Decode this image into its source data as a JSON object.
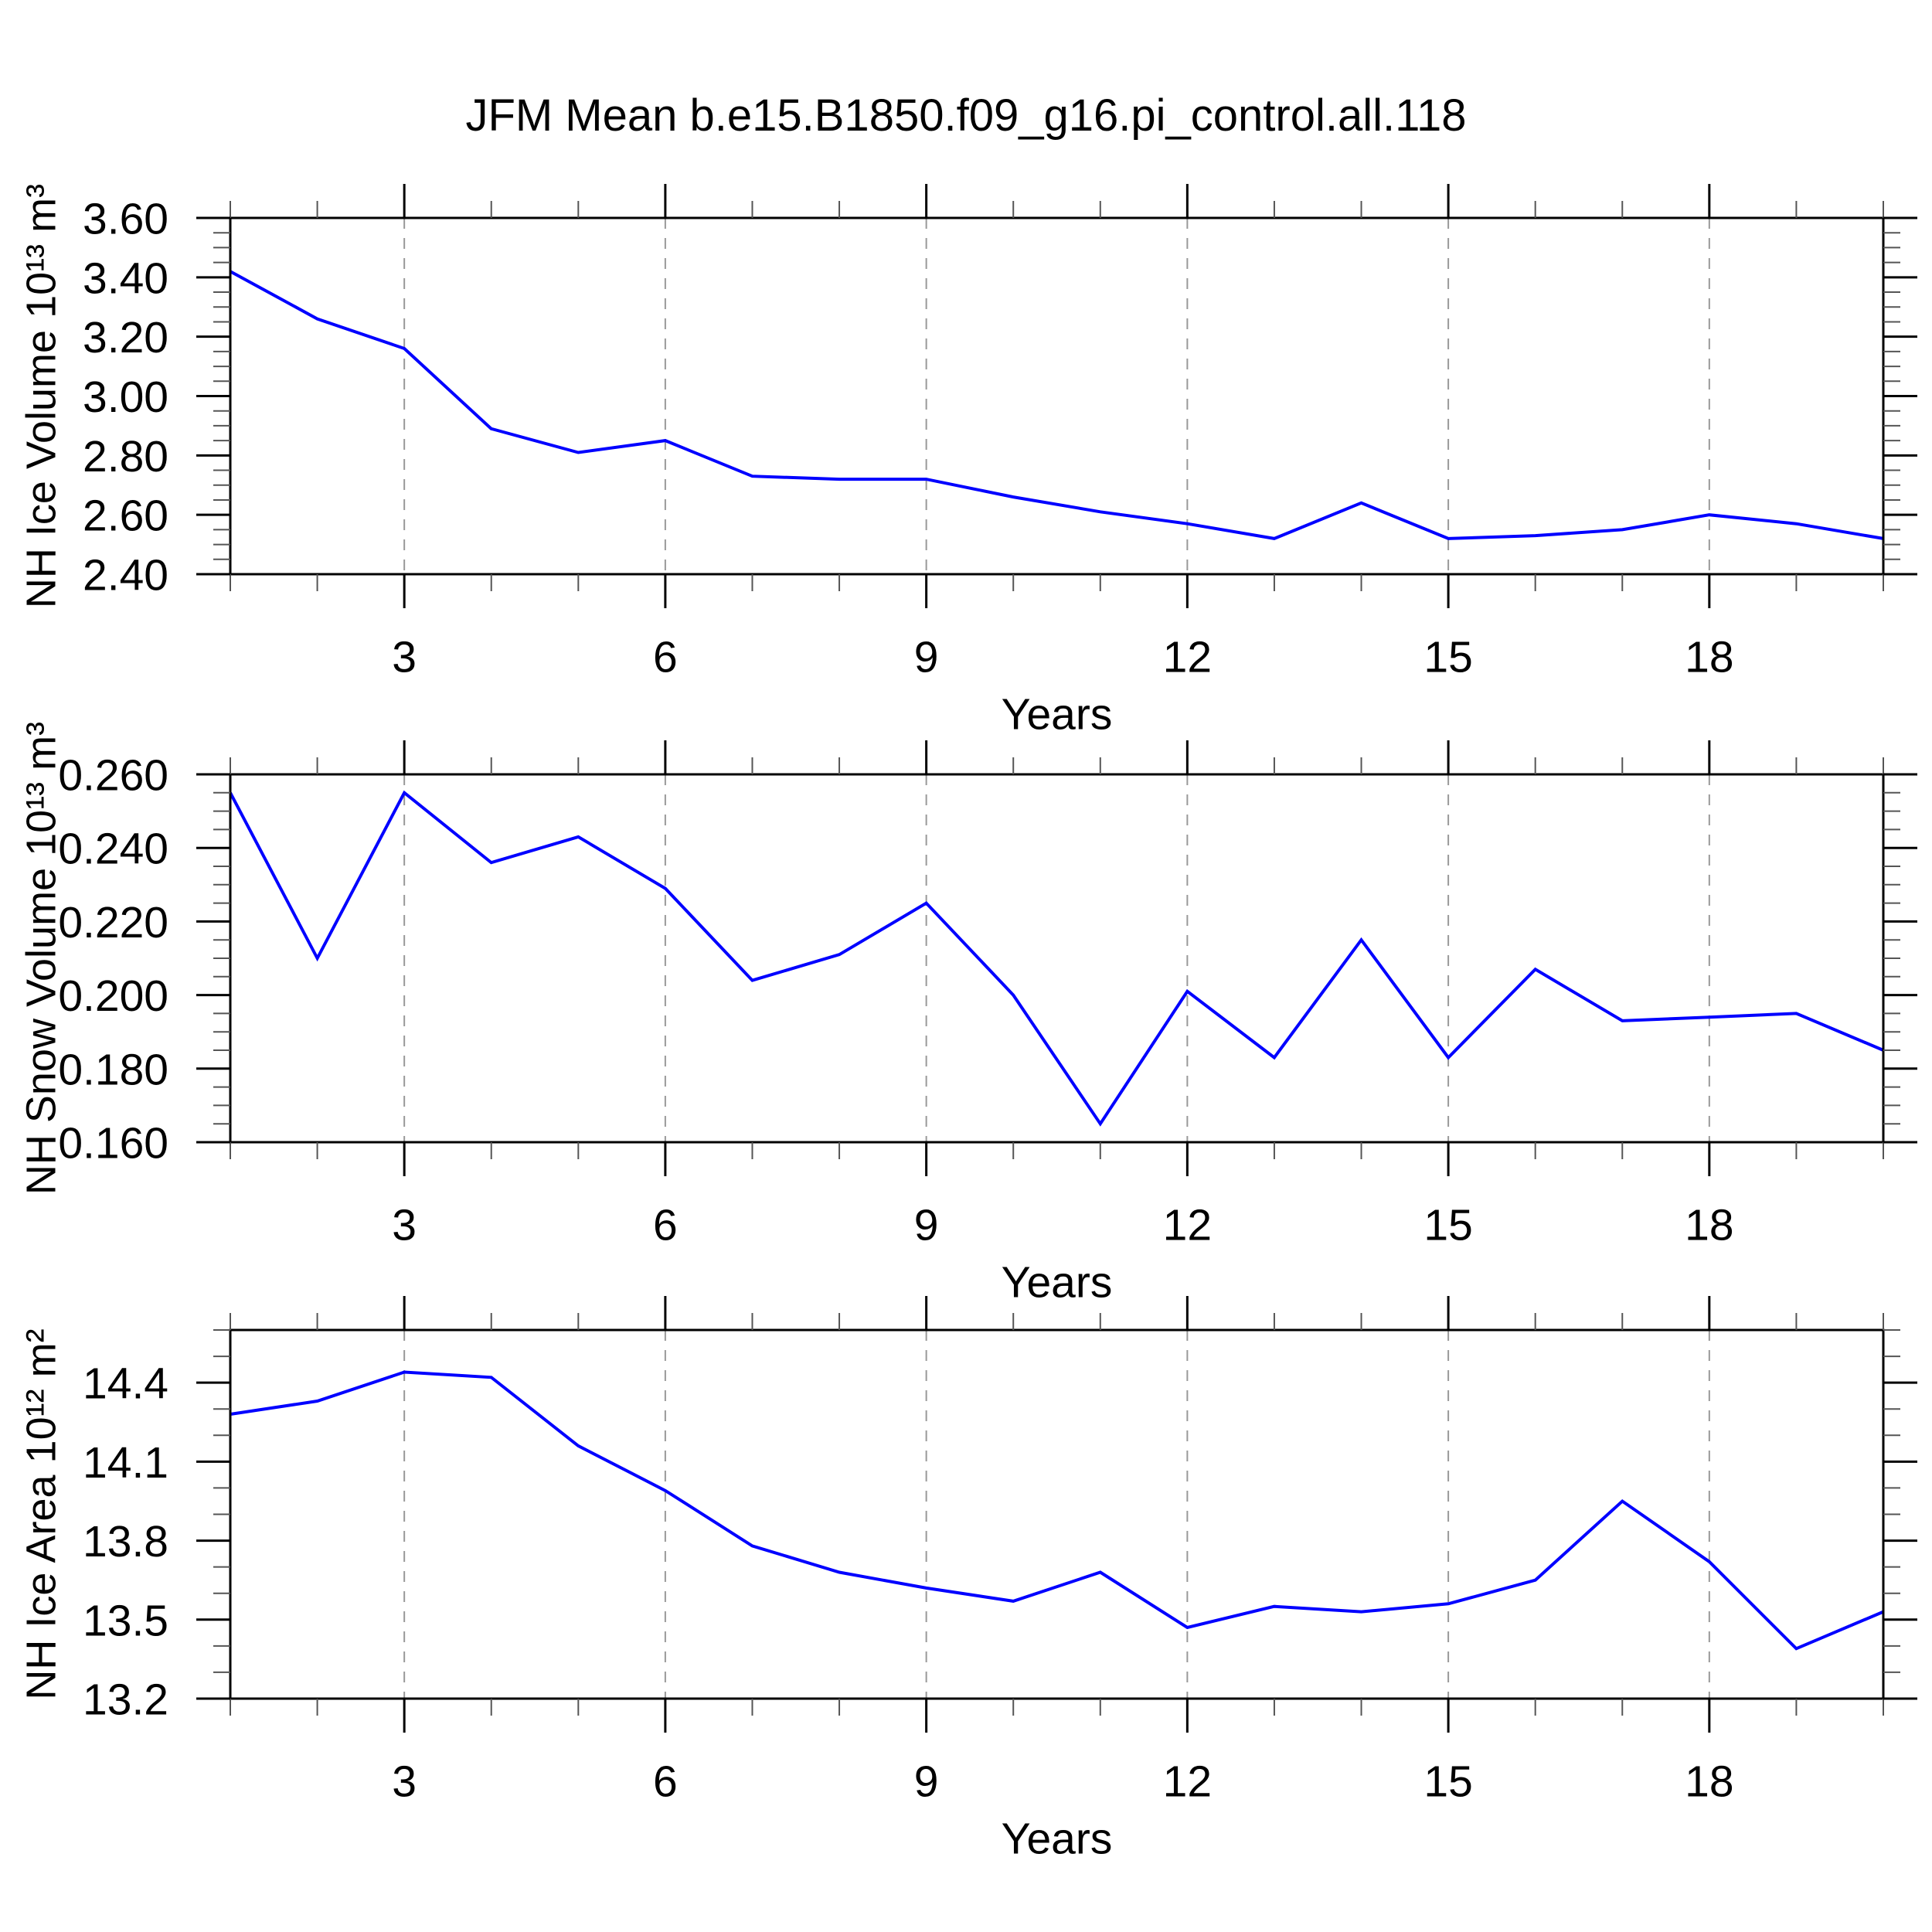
{
  "title": "JFM Mean b.e15.B1850.f09_g16.pi_control.all.118",
  "colors": {
    "line": "#0000ff",
    "grid": "#999999",
    "axis": "#000000",
    "minor_tick": "#555555",
    "text": "#000000",
    "background": "#ffffff"
  },
  "chart_data": [
    {
      "type": "line",
      "name": "nh-ice-volume",
      "ylabel": "NH Ice Volume 10¹³ m³",
      "xlabel": "Years",
      "x": [
        1,
        2,
        3,
        4,
        5,
        6,
        7,
        8,
        9,
        10,
        11,
        12,
        13,
        14,
        15,
        16,
        17,
        18,
        19,
        20
      ],
      "values": [
        3.42,
        3.26,
        3.16,
        2.89,
        2.81,
        2.85,
        2.73,
        2.72,
        2.72,
        2.66,
        2.61,
        2.57,
        2.52,
        2.64,
        2.52,
        2.53,
        2.55,
        2.6,
        2.57,
        2.52
      ],
      "xlim": [
        1,
        20
      ],
      "ylim": [
        2.4,
        3.6
      ],
      "xticks": [
        3,
        6,
        9,
        12,
        15,
        18
      ],
      "xtick_labels": [
        "3",
        "6",
        "9",
        "12",
        "15",
        "18"
      ],
      "x_minor_step": 1,
      "yticks": [
        2.4,
        2.6,
        2.8,
        3.0,
        3.2,
        3.4,
        3.6
      ],
      "ytick_labels": [
        "2.40",
        "2.60",
        "2.80",
        "3.00",
        "3.20",
        "3.40",
        "3.60"
      ],
      "y_minor_step": 0.05,
      "grid": "vertical-dashed-at-major-xticks",
      "legend": "none"
    },
    {
      "type": "line",
      "name": "nh-snow-volume",
      "ylabel": "NH Snow Volume 10¹³ m³",
      "xlabel": "Years",
      "x": [
        1,
        2,
        3,
        4,
        5,
        6,
        7,
        8,
        9,
        10,
        11,
        12,
        13,
        14,
        15,
        16,
        17,
        18,
        19,
        20
      ],
      "values": [
        0.255,
        0.21,
        0.255,
        0.236,
        0.243,
        0.229,
        0.204,
        0.211,
        0.225,
        0.2,
        0.165,
        0.201,
        0.183,
        0.215,
        0.183,
        0.207,
        0.193,
        0.194,
        0.195,
        0.185
      ],
      "xlim": [
        1,
        20
      ],
      "ylim": [
        0.16,
        0.26
      ],
      "xticks": [
        3,
        6,
        9,
        12,
        15,
        18
      ],
      "xtick_labels": [
        "3",
        "6",
        "9",
        "12",
        "15",
        "18"
      ],
      "x_minor_step": 1,
      "yticks": [
        0.16,
        0.18,
        0.2,
        0.22,
        0.24,
        0.26
      ],
      "ytick_labels": [
        "0.160",
        "0.180",
        "0.200",
        "0.220",
        "0.240",
        "0.260"
      ],
      "y_minor_step": 0.005,
      "grid": "vertical-dashed-at-major-xticks",
      "legend": "none"
    },
    {
      "type": "line",
      "name": "nh-ice-area",
      "ylabel": "NH Ice Area 10¹² m²",
      "xlabel": "Years",
      "x": [
        1,
        2,
        3,
        4,
        5,
        6,
        7,
        8,
        9,
        10,
        11,
        12,
        13,
        14,
        15,
        16,
        17,
        18,
        19,
        20
      ],
      "values": [
        14.28,
        14.33,
        14.44,
        14.42,
        14.16,
        13.99,
        13.78,
        13.68,
        13.62,
        13.57,
        13.68,
        13.47,
        13.55,
        13.53,
        13.56,
        13.65,
        13.95,
        13.72,
        13.39,
        13.53
      ],
      "xlim": [
        1,
        20
      ],
      "ylim": [
        13.2,
        14.6
      ],
      "xticks": [
        3,
        6,
        9,
        12,
        15,
        18
      ],
      "xtick_labels": [
        "3",
        "6",
        "9",
        "12",
        "15",
        "18"
      ],
      "x_minor_step": 1,
      "yticks": [
        13.2,
        13.5,
        13.8,
        14.1,
        14.4
      ],
      "ytick_labels": [
        "13.2",
        "13.5",
        "13.8",
        "14.1",
        "14.4"
      ],
      "y_minor_step": 0.1,
      "grid": "vertical-dashed-at-major-xticks",
      "legend": "none"
    }
  ]
}
